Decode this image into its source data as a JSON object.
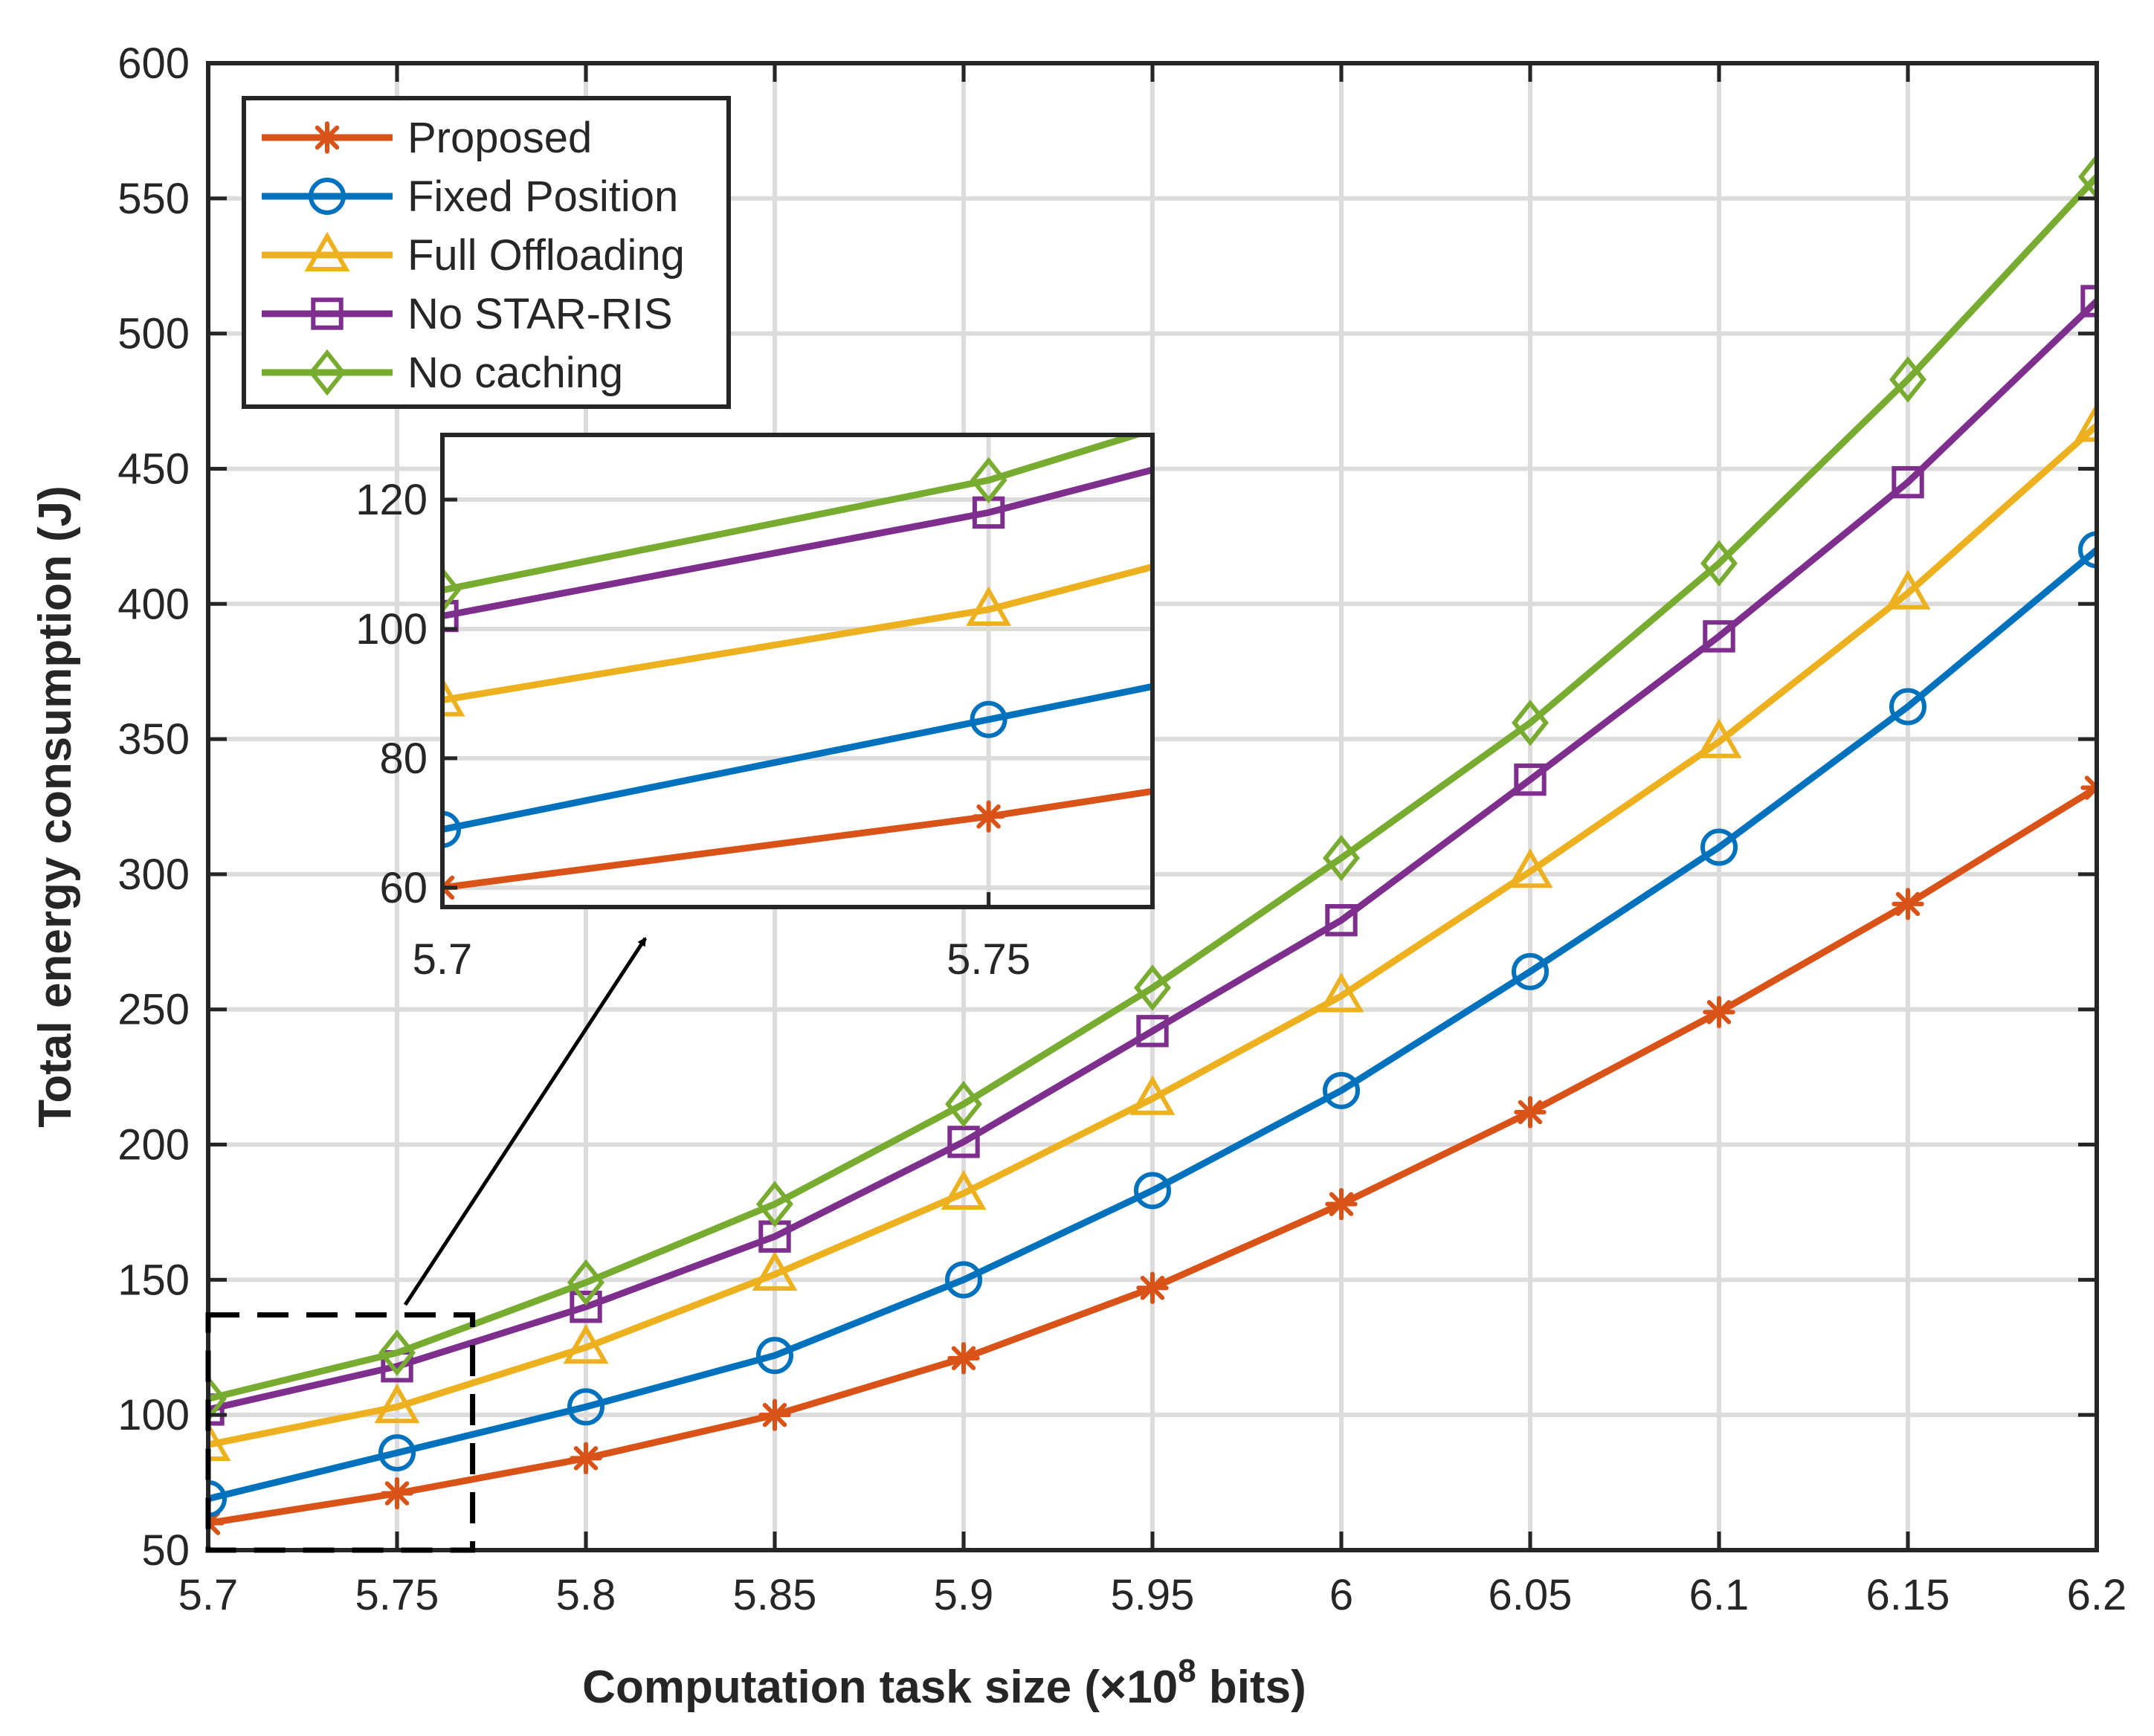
{
  "chart_data": {
    "type": "line",
    "title": "",
    "xlabel_main": "Computation task size (×10",
    "xlabel_exp": "8",
    "xlabel_tail": " bits)",
    "ylabel": "Total energy consumption (J)",
    "x": [
      5.7,
      5.75,
      5.8,
      5.85,
      5.9,
      5.95,
      6.0,
      6.05,
      6.1,
      6.15,
      6.2
    ],
    "x_tick_labels": [
      "5.7",
      "5.75",
      "5.8",
      "5.85",
      "5.9",
      "5.95",
      "6",
      "6.05",
      "6.1",
      "6.15",
      "6.2"
    ],
    "xlim": [
      5.7,
      6.2
    ],
    "ylim": [
      50,
      600
    ],
    "y_ticks": [
      50,
      100,
      150,
      200,
      250,
      300,
      350,
      400,
      450,
      500,
      550,
      600
    ],
    "y_tick_labels": [
      "50",
      "100",
      "150",
      "200",
      "250",
      "300",
      "350",
      "400",
      "450",
      "500",
      "550",
      "600"
    ],
    "grid": true,
    "legend_position": "top-left",
    "series": [
      {
        "name": "Proposed",
        "color": "#D95319",
        "marker": "asterisk",
        "values": [
          60,
          71,
          84,
          100,
          121,
          147,
          178,
          212,
          249,
          289,
          332
        ]
      },
      {
        "name": "Fixed Position",
        "color": "#0072BD",
        "marker": "circle",
        "values": [
          69,
          86,
          103,
          122,
          150,
          183,
          220,
          264,
          310,
          362,
          420
        ]
      },
      {
        "name": "Full Offloading",
        "color": "#EDB120",
        "marker": "triangle",
        "values": [
          89,
          103,
          125,
          152,
          182,
          217,
          255,
          301,
          349,
          404,
          466
        ]
      },
      {
        "name": "No STAR-RIS",
        "color": "#7E2F8E",
        "marker": "square",
        "values": [
          102,
          118,
          140,
          166,
          201,
          242,
          283,
          335,
          388,
          445,
          512
        ]
      },
      {
        "name": "No caching",
        "color": "#77AC30",
        "marker": "diamond",
        "values": [
          106,
          123,
          149,
          178,
          215,
          258,
          306,
          356,
          415,
          483,
          558
        ]
      }
    ],
    "inset": {
      "xlim": [
        5.7,
        5.765
      ],
      "ylim": [
        57,
        130
      ],
      "x_ticks": [
        5.7,
        5.75
      ],
      "x_tick_labels": [
        "5.7",
        "5.75"
      ],
      "y_ticks": [
        60,
        80,
        100,
        120
      ],
      "y_tick_labels": [
        "60",
        "80",
        "100",
        "120"
      ],
      "zoom_region": {
        "x": [
          5.7,
          5.77
        ],
        "y": [
          50,
          137
        ]
      }
    }
  }
}
